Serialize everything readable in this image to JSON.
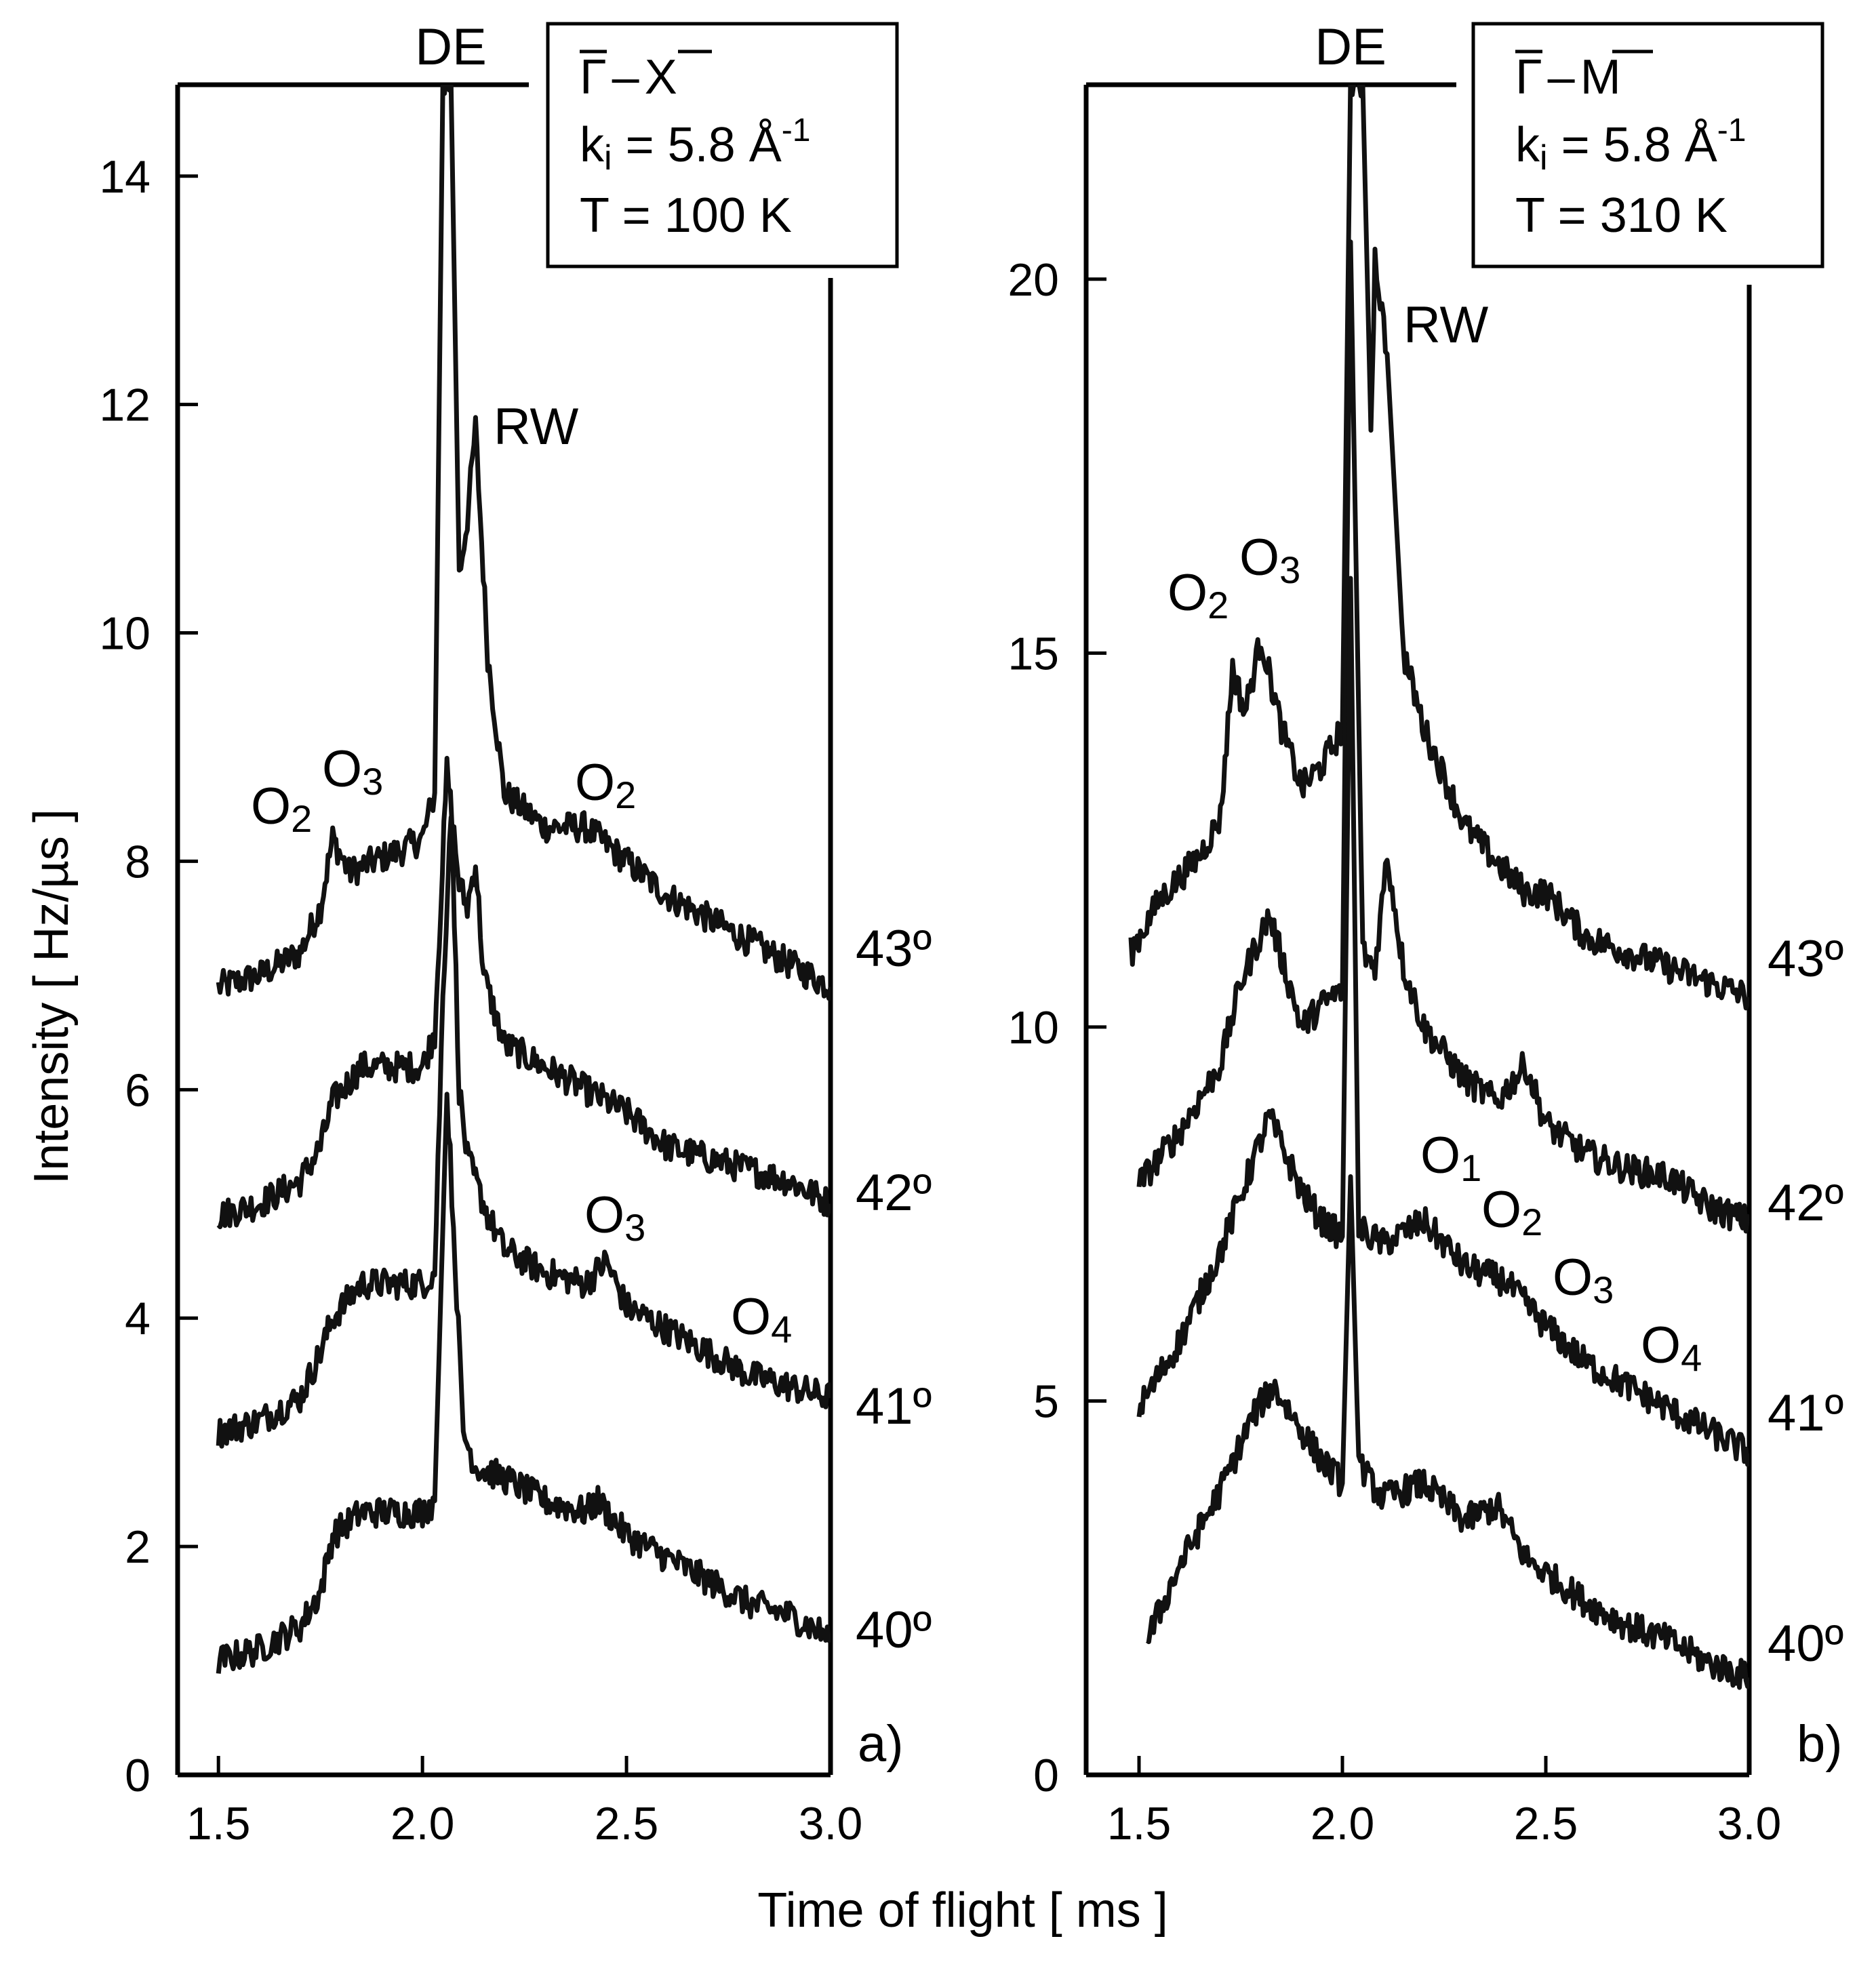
{
  "figure": {
    "xlabel": "Time of flight [ ms ]",
    "ylabel": "Intensity [ Hz/µs ]"
  },
  "chart_data": [
    {
      "type": "line",
      "panel_label": "a)",
      "title_symbols": {
        "g": "Γ",
        "dash": "–",
        "point": "X"
      },
      "info": {
        "ki_prefix": "k",
        "ki_sub": "i",
        "ki_value": " = 5.8 Å",
        "ki_exp": "-1",
        "temperature": "T = 100 K"
      },
      "xlim": [
        1.4,
        3.0
      ],
      "ylim": [
        0,
        14.8
      ],
      "xticks": [
        1.5,
        2.0,
        2.5,
        3.0
      ],
      "xtick_labels": [
        "1.5",
        "2.0",
        "2.5",
        "3.0"
      ],
      "yticks": [
        0,
        2,
        4,
        6,
        8,
        10,
        12,
        14
      ],
      "ytick_labels": [
        "0",
        "2",
        "4",
        "6",
        "8",
        "10",
        "12",
        "14"
      ],
      "series": [
        {
          "name": "43º",
          "x": [
            1.5,
            1.6,
            1.7,
            1.75,
            1.78,
            1.82,
            1.88,
            1.95,
            2.0,
            2.03,
            2.05,
            2.07,
            2.09,
            2.11,
            2.13,
            2.16,
            2.2,
            2.3,
            2.4,
            2.5,
            2.6,
            2.7,
            2.8,
            2.9,
            3.0
          ],
          "y": [
            6.9,
            7.0,
            7.2,
            7.6,
            8.2,
            7.9,
            8.0,
            8.1,
            8.2,
            8.6,
            14.8,
            14.8,
            10.5,
            11.0,
            11.8,
            9.8,
            8.6,
            8.3,
            8.3,
            8.0,
            7.7,
            7.5,
            7.3,
            7.1,
            6.9
          ]
        },
        {
          "name": "42º",
          "x": [
            1.5,
            1.6,
            1.7,
            1.75,
            1.78,
            1.85,
            1.95,
            2.0,
            2.03,
            2.06,
            2.09,
            2.11,
            2.13,
            2.15,
            2.2,
            2.3,
            2.4,
            2.5,
            2.6,
            2.7,
            2.8,
            2.9,
            3.0
          ],
          "y": [
            4.9,
            5.0,
            5.2,
            5.5,
            5.9,
            6.2,
            6.2,
            6.2,
            6.5,
            8.8,
            7.8,
            7.6,
            8.0,
            7.0,
            6.4,
            6.2,
            6.0,
            5.8,
            5.5,
            5.4,
            5.3,
            5.2,
            5.0
          ]
        },
        {
          "name": "41º",
          "x": [
            1.5,
            1.6,
            1.7,
            1.75,
            1.78,
            1.85,
            1.95,
            2.0,
            2.03,
            2.05,
            2.07,
            2.09,
            2.11,
            2.13,
            2.16,
            2.2,
            2.3,
            2.4,
            2.45,
            2.5,
            2.6,
            2.7,
            2.8,
            2.9,
            3.0
          ],
          "y": [
            3.0,
            3.1,
            3.3,
            3.7,
            4.0,
            4.3,
            4.3,
            4.3,
            4.4,
            6.8,
            8.5,
            6.0,
            5.4,
            5.2,
            4.9,
            4.6,
            4.4,
            4.3,
            4.5,
            4.1,
            3.9,
            3.7,
            3.5,
            3.4,
            3.3
          ]
        },
        {
          "name": "40º",
          "x": [
            1.5,
            1.6,
            1.7,
            1.75,
            1.78,
            1.85,
            1.95,
            2.0,
            2.03,
            2.06,
            2.08,
            2.1,
            2.13,
            2.2,
            2.3,
            2.4,
            2.43,
            2.5,
            2.6,
            2.7,
            2.8,
            2.9,
            3.0
          ],
          "y": [
            1.0,
            1.1,
            1.3,
            1.6,
            2.1,
            2.3,
            2.3,
            2.3,
            2.4,
            6.0,
            4.5,
            3.0,
            2.7,
            2.6,
            2.4,
            2.3,
            2.4,
            2.1,
            1.9,
            1.7,
            1.5,
            1.4,
            1.2
          ]
        }
      ],
      "series_labels": [
        "43º",
        "42º",
        "41º",
        "40º"
      ],
      "annotations": {
        "de": "DE",
        "rw": "RW",
        "o2_left_main": "O",
        "o2_left_sub": "2",
        "o3_left_main": "O",
        "o3_left_sub": "3",
        "o2_right_main": "O",
        "o2_right_sub": "2",
        "o3_right_main": "O",
        "o3_right_sub": "3",
        "o4_right_main": "O",
        "o4_right_sub": "4"
      }
    },
    {
      "type": "line",
      "panel_label": "b)",
      "title_symbols": {
        "g": "Γ",
        "dash": "–",
        "point": "M"
      },
      "info": {
        "ki_prefix": "k",
        "ki_sub": "i",
        "ki_value": " = 5.8 Å",
        "ki_exp": "-1",
        "temperature": "T = 310 K"
      },
      "xlim": [
        1.37,
        3.0
      ],
      "ylim": [
        0,
        22.6
      ],
      "xticks": [
        1.5,
        2.0,
        2.5,
        3.0
      ],
      "xtick_labels": [
        "1.5",
        "2.0",
        "2.5",
        "3.0"
      ],
      "yticks": [
        0,
        5,
        10,
        15,
        20
      ],
      "ytick_labels": [
        "0",
        "5",
        "10",
        "15",
        "20"
      ],
      "series": [
        {
          "name": "43º",
          "x": [
            1.48,
            1.55,
            1.65,
            1.7,
            1.73,
            1.76,
            1.8,
            1.85,
            1.9,
            1.95,
            2.0,
            2.02,
            2.05,
            2.07,
            2.08,
            2.11,
            2.15,
            2.2,
            2.3,
            2.38,
            2.45,
            2.5,
            2.6,
            2.7,
            2.8,
            2.9,
            3.0
          ],
          "y": [
            11.0,
            11.7,
            12.3,
            12.8,
            14.8,
            14.2,
            15.2,
            14.0,
            13.2,
            13.5,
            14.0,
            22.6,
            22.6,
            18.0,
            20.3,
            19.0,
            15.0,
            14.0,
            12.7,
            12.2,
            11.8,
            11.8,
            11.2,
            11.0,
            10.8,
            10.6,
            10.4
          ]
        },
        {
          "name": "42º",
          "x": [
            1.5,
            1.6,
            1.7,
            1.75,
            1.82,
            1.9,
            1.95,
            2.0,
            2.02,
            2.05,
            2.08,
            2.11,
            2.15,
            2.2,
            2.3,
            2.38,
            2.45,
            2.5,
            2.6,
            2.7,
            2.8,
            2.9,
            3.0
          ],
          "y": [
            7.9,
            8.6,
            9.5,
            10.6,
            11.5,
            10.0,
            10.3,
            10.5,
            20.5,
            11.0,
            10.8,
            12.3,
            10.8,
            10.0,
            9.3,
            9.0,
            9.5,
            8.7,
            8.3,
            8.1,
            8.0,
            7.6,
            7.4
          ]
        },
        {
          "name": "41º",
          "x": [
            1.5,
            1.6,
            1.7,
            1.78,
            1.82,
            1.9,
            1.95,
            2.0,
            2.02,
            2.04,
            2.07,
            2.1,
            2.2,
            2.3,
            2.4,
            2.5,
            2.6,
            2.7,
            2.8,
            2.9,
            3.0
          ],
          "y": [
            4.9,
            5.8,
            7.0,
            8.2,
            8.8,
            7.8,
            7.4,
            7.2,
            16.0,
            7.3,
            7.2,
            7.1,
            7.4,
            6.8,
            6.6,
            6.0,
            5.5,
            5.2,
            4.9,
            4.6,
            4.3
          ]
        },
        {
          "name": "40º",
          "x": [
            1.52,
            1.6,
            1.7,
            1.78,
            1.83,
            1.9,
            1.95,
            2.0,
            2.02,
            2.04,
            2.07,
            2.1,
            2.2,
            2.3,
            2.38,
            2.45,
            2.5,
            2.6,
            2.7,
            2.8,
            2.9,
            3.0
          ],
          "y": [
            1.8,
            2.8,
            3.8,
            4.8,
            5.2,
            4.6,
            4.2,
            3.9,
            8.0,
            4.2,
            3.9,
            3.7,
            3.9,
            3.4,
            3.6,
            2.9,
            2.7,
            2.3,
            2.0,
            1.8,
            1.5,
            1.3
          ]
        }
      ],
      "series_labels": [
        "43º",
        "42º",
        "41º",
        "40º"
      ],
      "annotations": {
        "de": "DE",
        "rw": "RW",
        "o2_left_main": "O",
        "o2_left_sub": "2",
        "o3_left_main": "O",
        "o3_left_sub": "3",
        "o1_main": "O",
        "o1_sub": "1",
        "o2_right_main": "O",
        "o2_right_sub": "2",
        "o3_right_main": "O",
        "o3_right_sub": "3",
        "o4_right_main": "O",
        "o4_right_sub": "4"
      }
    }
  ]
}
